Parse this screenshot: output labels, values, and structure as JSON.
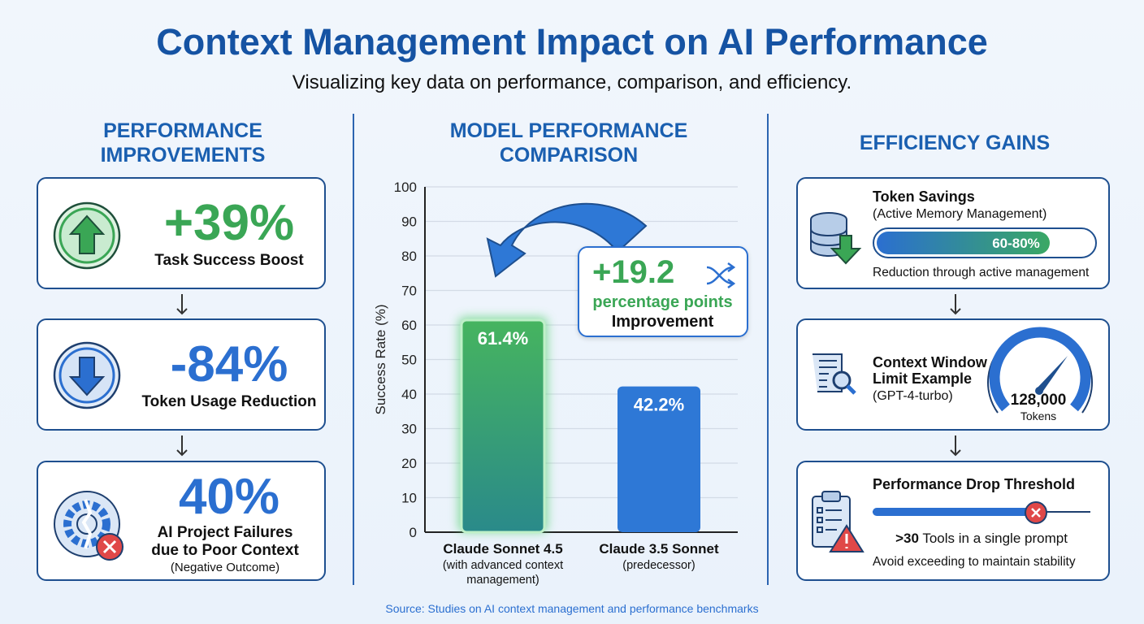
{
  "title": "Context Management Impact on AI Performance",
  "subtitle": "Visualizing key data on performance, comparison, and efficiency.",
  "left": {
    "heading": "PERFORMANCE IMPROVEMENTS",
    "cards": [
      {
        "value": "+39%",
        "label": "Task Success Boost",
        "icon": "arrow-up-circle-icon",
        "color": "#3aa655"
      },
      {
        "value": "-84%",
        "label": "Token Usage Reduction",
        "icon": "arrow-down-circle-icon",
        "color": "#2b6fd0"
      },
      {
        "value": "40%",
        "label": "AI Project Failures due to Poor Context",
        "note": "(Negative Outcome)",
        "icon": "broken-gear-icon",
        "color": "#2b6fd0"
      }
    ]
  },
  "middle": {
    "heading": "MODEL PERFORMANCE COMPARISON",
    "callout": {
      "value": "+19.2",
      "unit": "percentage points",
      "label": "Improvement",
      "icon": "shuffle-icon"
    }
  },
  "right": {
    "heading": "EFFICIENCY GAINS",
    "token_savings": {
      "title": "Token Savings",
      "subtitle": "(Active Memory Management)",
      "bar_label": "60-80%",
      "bar_fill": 0.8,
      "caption": "Reduction through active management",
      "icon": "database-down-icon"
    },
    "context_window": {
      "title_line1": "Context Window",
      "title_line2": "Limit Example",
      "model": "(GPT-4-turbo)",
      "value": "128,000",
      "unit": "Tokens",
      "icon": "document-search-icon"
    },
    "threshold": {
      "title": "Performance Drop Threshold",
      "value": ">30",
      "text": "Tools in a single prompt",
      "caption": "Avoid exceeding to maintain stability",
      "marker_position": 0.75,
      "icon": "clipboard-warning-icon"
    }
  },
  "source": "Source: Studies on AI context management and performance benchmarks",
  "chart_data": {
    "type": "bar",
    "ylabel": "Success Rate (%)",
    "ylim": [
      0,
      100
    ],
    "yticks": [
      0,
      10,
      20,
      30,
      40,
      50,
      60,
      70,
      80,
      90,
      100
    ],
    "grid": true,
    "categories": [
      {
        "name": "Claude Sonnet 4.5",
        "sub": "(with advanced context management)"
      },
      {
        "name": "Claude 3.5 Sonnet",
        "sub": "(predecessor)"
      }
    ],
    "values": [
      61.4,
      42.2
    ],
    "data_labels": [
      "61.4%",
      "42.2%"
    ],
    "colors": [
      "#3aa864",
      "#2e78d6"
    ]
  }
}
